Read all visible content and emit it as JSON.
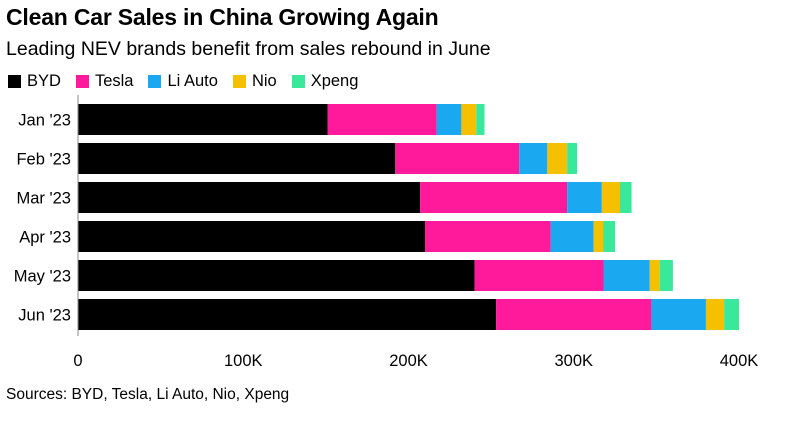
{
  "title": "Clean Car Sales in China Growing Again",
  "subtitle": "Leading NEV brands benefit from sales rebound in June",
  "source": "Sources: BYD, Tesla, Li Auto, Nio, Xpeng",
  "chart_data": {
    "type": "bar",
    "orientation": "horizontal",
    "stacked": true,
    "categories": [
      "Jan '23",
      "Feb '23",
      "Mar '23",
      "Apr '23",
      "May '23",
      "Jun '23"
    ],
    "series": [
      {
        "name": "BYD",
        "color": "#000000",
        "values": [
          151000,
          192000,
          207000,
          210000,
          240000,
          253000
        ]
      },
      {
        "name": "Tesla",
        "color": "#ff1a9c",
        "values": [
          66000,
          75000,
          89000,
          76000,
          78000,
          94000
        ]
      },
      {
        "name": "Li Auto",
        "color": "#1aa8f0",
        "values": [
          15000,
          17000,
          21000,
          26000,
          28000,
          33000
        ]
      },
      {
        "name": "Nio",
        "color": "#f5c000",
        "values": [
          9000,
          12000,
          11000,
          6000,
          6000,
          11000
        ]
      },
      {
        "name": "Xpeng",
        "color": "#39e89a",
        "values": [
          5000,
          6000,
          7000,
          7000,
          8000,
          9000
        ]
      }
    ],
    "xlim": [
      0,
      400000
    ],
    "ticks": [
      0,
      100000,
      200000,
      300000,
      400000
    ],
    "tick_labels": [
      "0",
      "100K",
      "200K",
      "300K",
      "400K"
    ],
    "legend_position": "top-left",
    "grid": false
  }
}
